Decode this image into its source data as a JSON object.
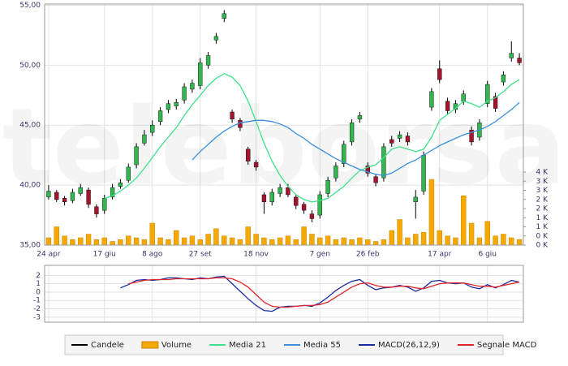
{
  "chart_data": [
    {
      "type": "candlestick",
      "watermark": "teleborsa",
      "grid": true,
      "categories": [
        "24 apr",
        null,
        null,
        null,
        null,
        null,
        null,
        "17 giu",
        null,
        null,
        null,
        null,
        null,
        "8 ago",
        null,
        null,
        null,
        null,
        null,
        "27 set",
        null,
        null,
        null,
        null,
        null,
        null,
        "18 nov",
        null,
        null,
        null,
        null,
        null,
        null,
        null,
        "7 gen",
        null,
        null,
        null,
        null,
        null,
        "26 feb",
        null,
        null,
        null,
        null,
        null,
        null,
        null,
        null,
        "17 apr",
        null,
        null,
        null,
        null,
        null,
        "6 giu",
        null,
        null,
        null,
        null
      ],
      "ylim": [
        35,
        55.1
      ],
      "yticks": [
        {
          "value": 35,
          "label": "35,00"
        },
        {
          "value": 40,
          "label": "40,00"
        },
        {
          "value": 45,
          "label": "45,00"
        },
        {
          "value": 50,
          "label": "50,00"
        },
        {
          "value": 55,
          "label": "55,00"
        }
      ],
      "y2lim": [
        0,
        13.2
      ],
      "y2ticks": [
        {
          "value": 0,
          "label": "0 K"
        },
        {
          "value": 0.5,
          "label": "0 K"
        },
        {
          "value": 1,
          "label": "1 K"
        },
        {
          "value": 1.5,
          "label": "1 K"
        },
        {
          "value": 2,
          "label": "2 K"
        },
        {
          "value": 2.5,
          "label": "2 K"
        },
        {
          "value": 3,
          "label": "3 K"
        },
        {
          "value": 3.5,
          "label": "3 K"
        },
        {
          "value": 4,
          "label": "4 K"
        }
      ],
      "series": [
        {
          "name": "Candele",
          "type": "candlestick",
          "color": "#000000",
          "up_color": "#33b550",
          "down_color": "#a3152e",
          "open": [
            39.0,
            39.4,
            38.9,
            38.7,
            39.3,
            39.6,
            38.2,
            37.9,
            39.0,
            39.9,
            40.4,
            41.7,
            43.5,
            44.4,
            45.3,
            46.3,
            46.6,
            47.1,
            48.0,
            48.3,
            50.0,
            52.1,
            53.9,
            46.1,
            45.4,
            43.0,
            41.9,
            39.2,
            38.6,
            39.3,
            39.8,
            39.0,
            38.4,
            37.6,
            37.5,
            39.3,
            40.6,
            41.8,
            43.6,
            45.5,
            41.6,
            40.7,
            40.6,
            43.8,
            43.9,
            44.1,
            38.6,
            39.5,
            46.5,
            49.7,
            47.0,
            46.3,
            47.0,
            44.6,
            44.0,
            46.8,
            47.4,
            48.6,
            50.6,
            50.6
          ],
          "high": [
            40.0,
            39.6,
            39.1,
            39.7,
            40.1,
            39.8,
            38.4,
            39.2,
            40.1,
            40.5,
            41.8,
            43.5,
            44.6,
            45.4,
            46.5,
            47.1,
            47.2,
            48.5,
            48.8,
            50.6,
            51.1,
            52.7,
            54.6,
            46.3,
            45.6,
            43.2,
            42.1,
            39.4,
            39.7,
            40.1,
            40.1,
            39.2,
            38.6,
            37.9,
            39.5,
            40.7,
            41.9,
            43.7,
            45.5,
            46.1,
            41.9,
            40.9,
            43.5,
            44.1,
            44.5,
            44.4,
            39.6,
            42.8,
            48.1,
            50.4,
            47.3,
            47.1,
            47.9,
            44.9,
            45.5,
            48.7,
            47.7,
            49.5,
            52.0,
            51.0
          ],
          "low": [
            38.8,
            38.6,
            38.3,
            38.5,
            39.1,
            38.1,
            37.3,
            37.6,
            38.8,
            39.7,
            40.2,
            41.4,
            43.3,
            44.1,
            45.0,
            46.0,
            46.3,
            46.8,
            47.7,
            48.0,
            49.7,
            51.8,
            53.6,
            45.2,
            44.5,
            41.7,
            41.2,
            37.6,
            38.3,
            39.0,
            39.0,
            38.0,
            37.6,
            36.9,
            37.2,
            39.0,
            40.3,
            41.5,
            43.3,
            45.2,
            40.7,
            39.9,
            40.3,
            43.2,
            43.6,
            43.3,
            37.2,
            39.2,
            46.2,
            48.5,
            45.9,
            46.0,
            46.7,
            43.3,
            43.7,
            46.5,
            46.1,
            48.3,
            50.3,
            50.0
          ],
          "close": [
            39.5,
            38.8,
            38.6,
            39.4,
            39.8,
            38.4,
            37.6,
            38.9,
            39.8,
            40.2,
            41.5,
            43.2,
            44.2,
            45.0,
            46.2,
            46.8,
            46.9,
            48.2,
            48.5,
            50.2,
            50.8,
            52.4,
            54.3,
            45.5,
            44.8,
            42.0,
            41.5,
            38.6,
            39.4,
            39.8,
            39.2,
            38.3,
            37.9,
            37.2,
            39.2,
            40.4,
            41.6,
            43.4,
            45.2,
            45.8,
            41.0,
            40.2,
            43.2,
            43.5,
            44.2,
            43.6,
            39.0,
            42.5,
            47.8,
            48.8,
            46.2,
            46.8,
            47.6,
            43.6,
            45.2,
            48.4,
            46.4,
            49.2,
            51.0,
            50.2
          ]
        },
        {
          "name": "Volume",
          "type": "bar",
          "axis": "y2",
          "color": "#f5a800",
          "values": [
            0.4,
            1.0,
            0.5,
            0.3,
            0.4,
            0.6,
            0.3,
            0.4,
            0.2,
            0.3,
            0.5,
            0.4,
            0.3,
            1.2,
            0.4,
            0.3,
            0.8,
            0.4,
            0.5,
            0.3,
            0.6,
            0.9,
            0.5,
            0.4,
            0.3,
            1.0,
            0.6,
            0.4,
            0.3,
            0.4,
            0.5,
            0.3,
            1.0,
            0.6,
            0.4,
            0.5,
            0.3,
            0.4,
            0.3,
            0.4,
            0.3,
            0.2,
            0.3,
            0.8,
            1.4,
            0.4,
            0.6,
            0.7,
            3.6,
            0.8,
            0.5,
            0.4,
            2.7,
            1.2,
            0.4,
            1.3,
            0.5,
            0.6,
            0.4,
            0.3
          ]
        },
        {
          "name": "Media 21",
          "type": "line",
          "color": "#3fe08a",
          "values": [
            null,
            null,
            null,
            null,
            null,
            null,
            null,
            38.9,
            39.1,
            39.5,
            40.0,
            40.6,
            41.4,
            42.3,
            43.2,
            44.0,
            44.8,
            45.8,
            46.7,
            47.5,
            48.3,
            48.9,
            49.3,
            49.0,
            48.3,
            47.0,
            45.3,
            43.5,
            42.0,
            40.8,
            39.9,
            39.2,
            38.8,
            38.6,
            38.7,
            38.9,
            39.4,
            39.9,
            40.6,
            41.2,
            41.5,
            41.7,
            42.3,
            43.0,
            43.2,
            43.0,
            42.8,
            43.0,
            44.0,
            45.4,
            45.9,
            46.4,
            47.0,
            46.8,
            46.5,
            47.0,
            47.3,
            47.8,
            48.4,
            48.8
          ]
        },
        {
          "name": "Media 55",
          "type": "line",
          "color": "#3a8fdc",
          "values": [
            null,
            null,
            null,
            null,
            null,
            null,
            null,
            null,
            null,
            null,
            null,
            null,
            null,
            null,
            null,
            null,
            null,
            null,
            42.1,
            42.8,
            43.4,
            44.0,
            44.5,
            44.9,
            45.2,
            45.3,
            45.4,
            45.4,
            45.3,
            45.1,
            44.8,
            44.3,
            43.9,
            43.4,
            43.0,
            42.6,
            42.2,
            41.9,
            41.6,
            41.3,
            41.1,
            40.9,
            40.8,
            41.0,
            41.4,
            41.8,
            42.1,
            42.5,
            42.9,
            43.3,
            43.6,
            43.9,
            44.2,
            44.4,
            44.6,
            44.9,
            45.3,
            45.8,
            46.3,
            46.9
          ]
        }
      ]
    },
    {
      "type": "line",
      "grid": true,
      "ylim": [
        -3.6,
        3.2
      ],
      "yticks": [
        2,
        1,
        0,
        -1,
        -2,
        -3
      ],
      "series": [
        {
          "name": "MACD(26,12,9)",
          "color": "#1c2aa0",
          "values": [
            null,
            null,
            null,
            null,
            null,
            null,
            null,
            null,
            null,
            0.5,
            0.9,
            1.4,
            1.5,
            1.4,
            1.5,
            1.7,
            1.7,
            1.6,
            1.5,
            1.7,
            1.6,
            1.8,
            1.9,
            1.0,
            0.1,
            -0.8,
            -1.6,
            -2.2,
            -2.3,
            -1.8,
            -1.7,
            -1.7,
            -1.6,
            -1.7,
            -1.3,
            -0.6,
            0.2,
            0.8,
            1.3,
            1.5,
            0.8,
            0.3,
            0.5,
            0.6,
            0.8,
            0.6,
            0.1,
            0.5,
            1.3,
            1.4,
            1.1,
            1.0,
            1.1,
            0.6,
            0.4,
            0.9,
            0.5,
            0.9,
            1.4,
            1.2
          ]
        },
        {
          "name": "Segnale MACD",
          "color": "#e0262b",
          "values": [
            null,
            null,
            null,
            null,
            null,
            null,
            null,
            null,
            null,
            null,
            1.0,
            1.2,
            1.4,
            1.5,
            1.5,
            1.5,
            1.6,
            1.6,
            1.6,
            1.6,
            1.6,
            1.7,
            1.7,
            1.6,
            1.2,
            0.6,
            -0.3,
            -1.2,
            -1.7,
            -1.8,
            -1.8,
            -1.7,
            -1.6,
            -1.6,
            -1.5,
            -1.2,
            -0.6,
            0.0,
            0.6,
            1.0,
            1.1,
            0.8,
            0.6,
            0.6,
            0.7,
            0.7,
            0.5,
            0.4,
            0.7,
            1.0,
            1.1,
            1.1,
            1.1,
            0.9,
            0.7,
            0.7,
            0.6,
            0.8,
            1.0,
            1.2
          ]
        }
      ]
    }
  ]
}
